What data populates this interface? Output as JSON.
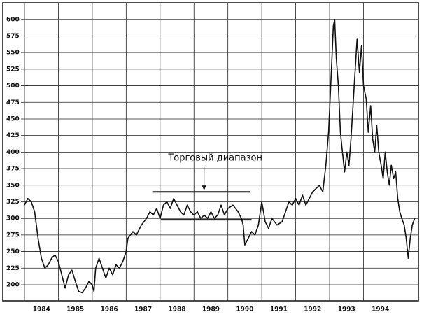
{
  "chart_data": {
    "type": "line",
    "x": [
      1984.0,
      1984.1,
      1984.2,
      1984.3,
      1984.4,
      1984.5,
      1984.6,
      1984.7,
      1984.8,
      1984.9,
      1985.0,
      1985.1,
      1985.2,
      1985.3,
      1985.4,
      1985.5,
      1985.6,
      1985.7,
      1985.8,
      1985.9,
      1986.0,
      1986.05,
      1986.1,
      1986.2,
      1986.3,
      1986.4,
      1986.5,
      1986.6,
      1986.7,
      1986.8,
      1986.9,
      1987.0,
      1987.05,
      1987.2,
      1987.3,
      1987.45,
      1987.6,
      1987.7,
      1987.8,
      1987.9,
      1988.0,
      1988.1,
      1988.2,
      1988.3,
      1988.4,
      1988.5,
      1988.6,
      1988.7,
      1988.8,
      1988.9,
      1989.0,
      1989.1,
      1989.2,
      1989.3,
      1989.4,
      1989.5,
      1989.6,
      1989.7,
      1989.8,
      1989.9,
      1990.0,
      1990.15,
      1990.3,
      1990.4,
      1990.45,
      1990.5,
      1990.6,
      1990.7,
      1990.8,
      1990.9,
      1991.0,
      1991.05,
      1991.1,
      1991.2,
      1991.3,
      1991.45,
      1991.6,
      1991.7,
      1991.8,
      1991.9,
      1992.0,
      1992.1,
      1992.2,
      1992.3,
      1992.4,
      1992.5,
      1992.6,
      1992.7,
      1992.8,
      1992.89,
      1992.97,
      1993.05,
      1993.11,
      1993.15,
      1993.2,
      1993.26,
      1993.32,
      1993.38,
      1993.44,
      1993.51,
      1993.57,
      1993.63,
      1993.69,
      1993.75,
      1993.81,
      1993.88,
      1993.94,
      1994.0,
      1994.08,
      1994.14,
      1994.21,
      1994.27,
      1994.33,
      1994.39,
      1994.45,
      1994.52,
      1994.58,
      1994.64,
      1994.7,
      1994.76,
      1994.82,
      1994.89,
      1994.95,
      1995.01,
      1995.07,
      1995.13,
      1995.2,
      1995.26,
      1995.32,
      1995.38,
      1995.44,
      1995.51
    ],
    "values": [
      320,
      330,
      325,
      310,
      270,
      240,
      225,
      230,
      240,
      245,
      235,
      215,
      195,
      215,
      222,
      205,
      190,
      188,
      195,
      205,
      200,
      190,
      225,
      240,
      225,
      210,
      225,
      215,
      230,
      225,
      235,
      250,
      270,
      280,
      275,
      290,
      300,
      310,
      305,
      315,
      300,
      320,
      325,
      315,
      330,
      320,
      310,
      305,
      320,
      310,
      305,
      310,
      300,
      305,
      300,
      310,
      300,
      305,
      320,
      305,
      315,
      320,
      310,
      300,
      290,
      260,
      270,
      280,
      275,
      290,
      325,
      310,
      295,
      285,
      300,
      290,
      295,
      310,
      325,
      320,
      330,
      320,
      335,
      320,
      330,
      340,
      345,
      350,
      340,
      380,
      430,
      520,
      590,
      600,
      540,
      500,
      430,
      400,
      370,
      400,
      380,
      420,
      470,
      520,
      570,
      520,
      560,
      500,
      480,
      430,
      470,
      420,
      400,
      440,
      400,
      380,
      360,
      400,
      370,
      350,
      380,
      360,
      370,
      330,
      310,
      300,
      290,
      270,
      240,
      270,
      290,
      300
    ],
    "color": "#111111",
    "xlim": [
      1984,
      1995.6
    ],
    "xticks": [
      {
        "value": 1984,
        "label": "1984"
      },
      {
        "value": 1985,
        "label": "1985"
      },
      {
        "value": 1986,
        "label": "1986"
      },
      {
        "value": 1987,
        "label": "1987"
      },
      {
        "value": 1988,
        "label": "1988"
      },
      {
        "value": 1989,
        "label": "1989"
      },
      {
        "value": 1990,
        "label": "1990"
      },
      {
        "value": 1991,
        "label": "1991"
      },
      {
        "value": 1992,
        "label": "1992"
      },
      {
        "value": 1993,
        "label": "1993"
      },
      {
        "value": 1994,
        "label": "1994"
      }
    ],
    "ylim": [
      181,
      624
    ],
    "yticks": [
      200,
      225,
      250,
      275,
      300,
      325,
      350,
      375,
      400,
      425,
      450,
      475,
      500,
      525,
      550,
      575,
      600
    ],
    "grid": true,
    "annotation": {
      "text": "Торговый диапазон",
      "upper": {
        "y": 340,
        "x": [
          1987.77,
          1990.66
        ]
      },
      "lower": {
        "y": 298,
        "x": [
          1988.02,
          1990.7
        ]
      }
    }
  }
}
